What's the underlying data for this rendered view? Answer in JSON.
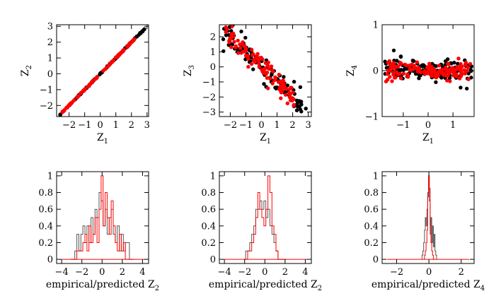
{
  "chart_data": [
    {
      "type": "scatter",
      "xlabel": "Z",
      "xlabel_sub": "1",
      "ylabel": "Z",
      "ylabel_sub": "2",
      "xlim": [
        -2.8,
        3.1
      ],
      "ylim": [
        -2.7,
        3.1
      ],
      "xticks": [
        -2,
        -1,
        0,
        1,
        2,
        3
      ],
      "yticks": [
        -2,
        -1,
        0,
        1,
        2,
        3
      ],
      "series": [
        {
          "color": "#000000",
          "kind": "linear",
          "x_range": [
            -2.6,
            2.85
          ],
          "slope": 1.0,
          "intercept": 0.0,
          "noise": 0.02,
          "n": 95
        },
        {
          "color": "#ff0000",
          "kind": "linear",
          "x_range": [
            -2.45,
            2.2
          ],
          "slope": 1.0,
          "intercept": 0.0,
          "noise": 0.02,
          "n": 95
        }
      ]
    },
    {
      "type": "scatter",
      "xlabel": "Z",
      "xlabel_sub": "1",
      "ylabel": "Z",
      "ylabel_sub": "3",
      "xlim": [
        -2.7,
        3.2
      ],
      "ylim": [
        -3.3,
        2.8
      ],
      "xticks": [
        -2,
        -1,
        0,
        1,
        2,
        3
      ],
      "yticks": [
        -3,
        -2,
        -1,
        0,
        1,
        2
      ],
      "series": [
        {
          "color": "#000000",
          "kind": "linear",
          "x_range": [
            -2.5,
            2.9
          ],
          "slope": -1.0,
          "intercept": 0.0,
          "noise": 0.4,
          "n": 110
        },
        {
          "color": "#ff0000",
          "kind": "linear",
          "x_range": [
            -2.3,
            2.2
          ],
          "slope": -1.0,
          "intercept": 0.0,
          "noise": 0.35,
          "n": 110
        }
      ]
    },
    {
      "type": "scatter",
      "xlabel": "Z",
      "xlabel_sub": "1",
      "ylabel": "Z",
      "ylabel_sub": "4",
      "xlim": [
        -1.85,
        1.85
      ],
      "ylim": [
        -1.0,
        1.0
      ],
      "xticks": [
        -1,
        0,
        1
      ],
      "yticks": [
        -1,
        0,
        1
      ],
      "series": [
        {
          "color": "#000000",
          "kind": "flat",
          "x_range": [
            -1.75,
            1.75
          ],
          "noise": 0.16,
          "n": 150
        },
        {
          "color": "#ff0000",
          "kind": "flat",
          "x_range": [
            -1.7,
            1.7
          ],
          "noise": 0.13,
          "n": 150
        }
      ]
    },
    {
      "type": "histogram",
      "xlabel": "empirical/predicted Z",
      "xlabel_sub": "2",
      "xlim": [
        -4.5,
        4.6
      ],
      "ylim": [
        -0.05,
        1.05
      ],
      "xticks": [
        -4,
        -2,
        0,
        2,
        4
      ],
      "yticks": [
        0,
        0.2,
        0.4,
        0.6,
        0.8,
        1
      ],
      "ytick_labels": [
        "0",
        "0.2",
        "0.4",
        "0.6",
        "0.8",
        "1"
      ],
      "series": [
        {
          "color": "#555555",
          "x": [
            -3.0,
            -2.8,
            -2.6,
            -2.4,
            -2.2,
            -2.0,
            -1.8,
            -1.6,
            -1.4,
            -1.2,
            -1.0,
            -0.8,
            -0.6,
            -0.4,
            -0.2,
            0.0,
            0.2,
            0.4,
            0.6,
            0.8,
            1.0,
            1.2,
            1.4,
            1.6,
            1.8,
            2.0,
            2.2,
            2.4,
            2.6,
            2.8,
            3.0
          ],
          "values": [
            0,
            0,
            0.1,
            0.3,
            0.1,
            0.3,
            0.4,
            0.2,
            0.4,
            0.2,
            0.5,
            0.3,
            0.6,
            0.5,
            0.8,
            0.7,
            0.4,
            0.6,
            0.3,
            0.5,
            0.6,
            0.3,
            0.2,
            0.4,
            0.1,
            0.3,
            0.1,
            0.2,
            0.2,
            0,
            0
          ]
        },
        {
          "color": "#ff0000",
          "x": [
            -3.0,
            -2.8,
            -2.6,
            -2.4,
            -2.2,
            -2.0,
            -1.8,
            -1.6,
            -1.4,
            -1.2,
            -1.0,
            -0.8,
            -0.6,
            -0.4,
            -0.2,
            0.0,
            0.2,
            0.4,
            0.6,
            0.8,
            1.0,
            1.2,
            1.4,
            1.6,
            1.8,
            2.0,
            2.2,
            2.4,
            2.6,
            2.8,
            3.0
          ],
          "values": [
            0,
            0,
            0,
            0.1,
            0.1,
            0.1,
            0.2,
            0.3,
            0.1,
            0.4,
            0.2,
            0.3,
            0.5,
            0.2,
            0.6,
            1.0,
            0.4,
            0.8,
            0.5,
            0.3,
            0.7,
            0.4,
            0.2,
            0.1,
            0.3,
            0.1,
            0.2,
            0,
            0,
            0,
            0
          ]
        }
      ]
    },
    {
      "type": "histogram",
      "xlabel": "empirical/predicted Z",
      "xlabel_sub": "2",
      "xlim": [
        -4.5,
        4.6
      ],
      "ylim": [
        -0.05,
        1.05
      ],
      "xticks": [
        -4,
        -2,
        0,
        2,
        4
      ],
      "yticks": [
        0,
        0.2,
        0.4,
        0.6,
        0.8,
        1
      ],
      "ytick_labels": [
        "0",
        "0.2",
        "0.4",
        "0.6",
        "0.8",
        "1"
      ],
      "series": [
        {
          "color": "#555555",
          "x": [
            -2.0,
            -1.8,
            -1.6,
            -1.4,
            -1.2,
            -1.0,
            -0.8,
            -0.6,
            -0.4,
            -0.2,
            0.0,
            0.2,
            0.4,
            0.6,
            0.8,
            1.0,
            1.2,
            1.4,
            1.6,
            1.8,
            2.0
          ],
          "values": [
            0,
            0.1,
            0.1,
            0.2,
            0.3,
            0.4,
            0.6,
            0.6,
            0.7,
            0.6,
            0.7,
            0.5,
            0.6,
            0.4,
            0.3,
            0.2,
            0.1,
            0,
            0,
            0,
            0
          ]
        },
        {
          "color": "#ff0000",
          "x": [
            -2.0,
            -1.8,
            -1.6,
            -1.4,
            -1.2,
            -1.0,
            -0.8,
            -0.6,
            -0.4,
            -0.2,
            0.0,
            0.2,
            0.4,
            0.6,
            0.8,
            1.0,
            1.2,
            1.4,
            1.6,
            1.8,
            2.0
          ],
          "values": [
            0,
            0,
            0.1,
            0.1,
            0.2,
            0.3,
            0.5,
            0.8,
            0.6,
            0.5,
            0.4,
            0.6,
            1.0,
            0.8,
            0.4,
            0.3,
            0.1,
            0,
            0,
            0,
            0
          ]
        }
      ]
    },
    {
      "type": "histogram",
      "xlabel": "empirical/predicted Z",
      "xlabel_sub": "4",
      "xlim": [
        -2.9,
        2.8
      ],
      "ylim": [
        -0.05,
        1.05
      ],
      "xticks": [
        -2,
        0,
        2
      ],
      "yticks": [
        0,
        0.2,
        0.4,
        0.6,
        0.8,
        1
      ],
      "ytick_labels": [
        "0",
        "0.2",
        "0.4",
        "0.6",
        "0.8",
        "1"
      ],
      "series": [
        {
          "color": "#555555",
          "x": [
            -0.45,
            -0.4,
            -0.35,
            -0.3,
            -0.25,
            -0.2,
            -0.15,
            -0.1,
            -0.05,
            0.0,
            0.05,
            0.1,
            0.15,
            0.2,
            0.25,
            0.3,
            0.35,
            0.4,
            0.45,
            0.5
          ],
          "values": [
            0,
            0.05,
            0.1,
            0.2,
            0.35,
            0.5,
            0.4,
            0.6,
            0.8,
            1.0,
            0.7,
            0.3,
            0.5,
            0.2,
            0.4,
            0.15,
            0.3,
            0.1,
            0.05,
            0
          ]
        },
        {
          "color": "#ff0000",
          "x": [
            -0.3,
            -0.25,
            -0.2,
            -0.15,
            -0.1,
            -0.05,
            0.0,
            0.05,
            0.1,
            0.15,
            0.2,
            0.25,
            0.3,
            0.35
          ],
          "values": [
            0,
            0.05,
            0.1,
            0.2,
            0.35,
            0.75,
            1.0,
            0.85,
            0.4,
            0.2,
            0.1,
            0.05,
            0,
            0
          ]
        }
      ]
    }
  ]
}
